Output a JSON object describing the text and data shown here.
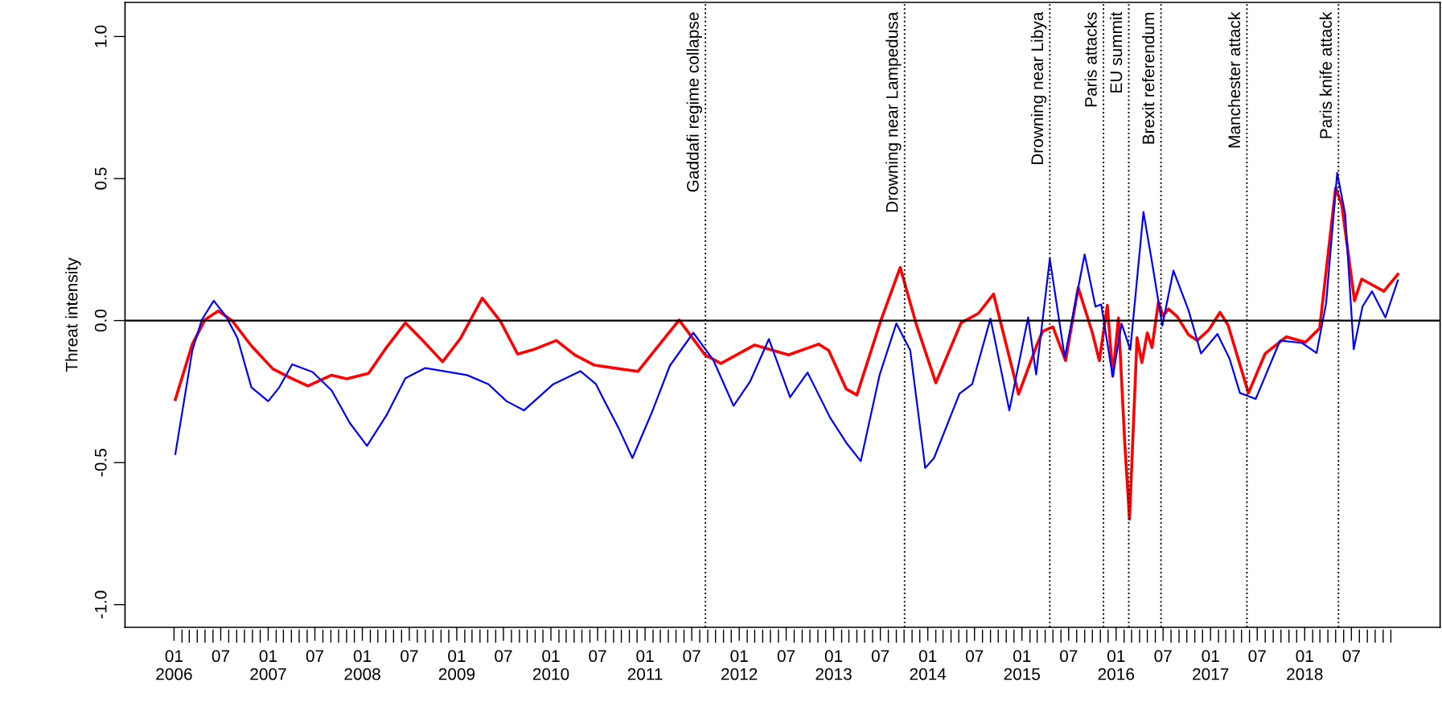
{
  "chart_data": {
    "type": "line",
    "ylabel": "Threat intensity",
    "xlim": [
      "2005-06-25",
      "2019-06-10"
    ],
    "ylim": [
      -1.08,
      1.12
    ],
    "yticks": [
      {
        "value": -1,
        "label": "-1.0"
      },
      {
        "value": -0.5,
        "label": "-0.5"
      },
      {
        "value": 0,
        "label": "0.0"
      },
      {
        "value": 0.5,
        "label": "0.5"
      },
      {
        "value": 1,
        "label": "1.0"
      }
    ],
    "xticks": [
      {
        "value": "2006-01",
        "label": "01\n2006"
      },
      {
        "value": "2006-02",
        "label": null
      },
      {
        "value": "2006-03",
        "label": null
      },
      {
        "value": "2006-04",
        "label": null
      },
      {
        "value": "2006-05",
        "label": null
      },
      {
        "value": "2006-06",
        "label": null
      },
      {
        "value": "2006-07",
        "label": "07"
      },
      {
        "value": "2006-08",
        "label": null
      },
      {
        "value": "2006-09",
        "label": null
      },
      {
        "value": "2006-10",
        "label": null
      },
      {
        "value": "2006-11",
        "label": null
      },
      {
        "value": "2006-12",
        "label": null
      },
      {
        "value": "2007-01",
        "label": "01\n2007"
      },
      {
        "value": "2007-02",
        "label": null
      },
      {
        "value": "2007-03",
        "label": null
      },
      {
        "value": "2007-04",
        "label": null
      },
      {
        "value": "2007-05",
        "label": null
      },
      {
        "value": "2007-06",
        "label": null
      },
      {
        "value": "2007-07",
        "label": "07"
      },
      {
        "value": "2007-08",
        "label": null
      },
      {
        "value": "2007-09",
        "label": null
      },
      {
        "value": "2007-10",
        "label": null
      },
      {
        "value": "2007-11",
        "label": null
      },
      {
        "value": "2007-12",
        "label": null
      },
      {
        "value": "2008-01",
        "label": "01\n2008"
      },
      {
        "value": "2008-02",
        "label": null
      },
      {
        "value": "2008-03",
        "label": null
      },
      {
        "value": "2008-04",
        "label": null
      },
      {
        "value": "2008-05",
        "label": null
      },
      {
        "value": "2008-06",
        "label": null
      },
      {
        "value": "2008-07",
        "label": "07"
      },
      {
        "value": "2008-08",
        "label": null
      },
      {
        "value": "2008-09",
        "label": null
      },
      {
        "value": "2008-10",
        "label": null
      },
      {
        "value": "2008-11",
        "label": null
      },
      {
        "value": "2008-12",
        "label": null
      },
      {
        "value": "2009-01",
        "label": "01\n2009"
      },
      {
        "value": "2009-02",
        "label": null
      },
      {
        "value": "2009-03",
        "label": null
      },
      {
        "value": "2009-04",
        "label": null
      },
      {
        "value": "2009-05",
        "label": null
      },
      {
        "value": "2009-06",
        "label": null
      },
      {
        "value": "2009-07",
        "label": "07"
      },
      {
        "value": "2009-08",
        "label": null
      },
      {
        "value": "2009-09",
        "label": null
      },
      {
        "value": "2009-10",
        "label": null
      },
      {
        "value": "2009-11",
        "label": null
      },
      {
        "value": "2009-12",
        "label": null
      },
      {
        "value": "2010-01",
        "label": "01\n2010"
      },
      {
        "value": "2010-02",
        "label": null
      },
      {
        "value": "2010-03",
        "label": null
      },
      {
        "value": "2010-04",
        "label": null
      },
      {
        "value": "2010-05",
        "label": null
      },
      {
        "value": "2010-06",
        "label": null
      },
      {
        "value": "2010-07",
        "label": "07"
      },
      {
        "value": "2010-08",
        "label": null
      },
      {
        "value": "2010-09",
        "label": null
      },
      {
        "value": "2010-10",
        "label": null
      },
      {
        "value": "2010-11",
        "label": null
      },
      {
        "value": "2010-12",
        "label": null
      },
      {
        "value": "2011-01",
        "label": "01\n2011"
      },
      {
        "value": "2011-02",
        "label": null
      },
      {
        "value": "2011-03",
        "label": null
      },
      {
        "value": "2011-04",
        "label": null
      },
      {
        "value": "2011-05",
        "label": null
      },
      {
        "value": "2011-06",
        "label": null
      },
      {
        "value": "2011-07",
        "label": "07"
      },
      {
        "value": "2011-08",
        "label": null
      },
      {
        "value": "2011-09",
        "label": null
      },
      {
        "value": "2011-10",
        "label": null
      },
      {
        "value": "2011-11",
        "label": null
      },
      {
        "value": "2011-12",
        "label": null
      },
      {
        "value": "2012-01",
        "label": "01\n2012"
      },
      {
        "value": "2012-02",
        "label": null
      },
      {
        "value": "2012-03",
        "label": null
      },
      {
        "value": "2012-04",
        "label": null
      },
      {
        "value": "2012-05",
        "label": null
      },
      {
        "value": "2012-06",
        "label": null
      },
      {
        "value": "2012-07",
        "label": "07"
      },
      {
        "value": "2012-08",
        "label": null
      },
      {
        "value": "2012-09",
        "label": null
      },
      {
        "value": "2012-10",
        "label": null
      },
      {
        "value": "2012-11",
        "label": null
      },
      {
        "value": "2012-12",
        "label": null
      },
      {
        "value": "2013-01",
        "label": "01\n2013"
      },
      {
        "value": "2013-02",
        "label": null
      },
      {
        "value": "2013-03",
        "label": null
      },
      {
        "value": "2013-04",
        "label": null
      },
      {
        "value": "2013-05",
        "label": null
      },
      {
        "value": "2013-06",
        "label": null
      },
      {
        "value": "2013-07",
        "label": "07"
      },
      {
        "value": "2013-08",
        "label": null
      },
      {
        "value": "2013-09",
        "label": null
      },
      {
        "value": "2013-10",
        "label": null
      },
      {
        "value": "2013-11",
        "label": null
      },
      {
        "value": "2013-12",
        "label": null
      },
      {
        "value": "2014-01",
        "label": "01\n2014"
      },
      {
        "value": "2014-02",
        "label": null
      },
      {
        "value": "2014-03",
        "label": null
      },
      {
        "value": "2014-04",
        "label": null
      },
      {
        "value": "2014-05",
        "label": null
      },
      {
        "value": "2014-06",
        "label": null
      },
      {
        "value": "2014-07",
        "label": "07"
      },
      {
        "value": "2014-08",
        "label": null
      },
      {
        "value": "2014-09",
        "label": null
      },
      {
        "value": "2014-10",
        "label": null
      },
      {
        "value": "2014-11",
        "label": null
      },
      {
        "value": "2014-12",
        "label": null
      },
      {
        "value": "2015-01",
        "label": "01\n2015"
      },
      {
        "value": "2015-02",
        "label": null
      },
      {
        "value": "2015-03",
        "label": null
      },
      {
        "value": "2015-04",
        "label": null
      },
      {
        "value": "2015-05",
        "label": null
      },
      {
        "value": "2015-06",
        "label": null
      },
      {
        "value": "2015-07",
        "label": "07"
      },
      {
        "value": "2015-08",
        "label": null
      },
      {
        "value": "2015-09",
        "label": null
      },
      {
        "value": "2015-10",
        "label": null
      },
      {
        "value": "2015-11",
        "label": null
      },
      {
        "value": "2015-12",
        "label": null
      },
      {
        "value": "2016-01",
        "label": "01\n2016"
      },
      {
        "value": "2016-02",
        "label": null
      },
      {
        "value": "2016-03",
        "label": null
      },
      {
        "value": "2016-04",
        "label": null
      },
      {
        "value": "2016-05",
        "label": null
      },
      {
        "value": "2016-06",
        "label": null
      },
      {
        "value": "2016-07",
        "label": "07"
      },
      {
        "value": "2016-08",
        "label": null
      },
      {
        "value": "2016-09",
        "label": null
      },
      {
        "value": "2016-10",
        "label": null
      },
      {
        "value": "2016-11",
        "label": null
      },
      {
        "value": "2016-12",
        "label": null
      },
      {
        "value": "2017-01",
        "label": "01\n2017"
      },
      {
        "value": "2017-02",
        "label": null
      },
      {
        "value": "2017-03",
        "label": null
      },
      {
        "value": "2017-04",
        "label": null
      },
      {
        "value": "2017-05",
        "label": null
      },
      {
        "value": "2017-06",
        "label": null
      },
      {
        "value": "2017-07",
        "label": "07"
      },
      {
        "value": "2017-08",
        "label": null
      },
      {
        "value": "2017-09",
        "label": null
      },
      {
        "value": "2017-10",
        "label": null
      },
      {
        "value": "2017-11",
        "label": null
      },
      {
        "value": "2017-12",
        "label": null
      },
      {
        "value": "2018-01",
        "label": "01\n2018"
      },
      {
        "value": "2018-02",
        "label": null
      },
      {
        "value": "2018-03",
        "label": null
      },
      {
        "value": "2018-04",
        "label": null
      },
      {
        "value": "2018-05",
        "label": null
      },
      {
        "value": "2018-06",
        "label": null
      },
      {
        "value": "2018-07",
        "label": "07"
      },
      {
        "value": "2018-08",
        "label": null
      },
      {
        "value": "2018-09",
        "label": null
      },
      {
        "value": "2018-10",
        "label": null
      },
      {
        "value": "2018-11",
        "label": null
      },
      {
        "value": "2018-12",
        "label": null
      }
    ],
    "grid": false,
    "legend": false,
    "marker": "none",
    "line_style": "solid",
    "series": [
      {
        "color": "#ff0000",
        "x": [
          "2006-01-06",
          "2006-03-13",
          "2006-05-01",
          "2006-06-22",
          "2006-08-16",
          "2006-10-28",
          "2007-01-19",
          "2007-04-01",
          "2007-06-04",
          "2007-09-04",
          "2007-11-01",
          "2008-01-25",
          "2008-04-04",
          "2008-06-16",
          "2008-08-25",
          "2008-11-07",
          "2009-01-16",
          "2009-04-10",
          "2009-06-19",
          "2009-08-25",
          "2009-11-01",
          "2010-01-22",
          "2010-04-04",
          "2010-06-19",
          "2010-12-04",
          "2011-05-13",
          "2011-08-22",
          "2011-10-22",
          "2012-03-01",
          "2012-07-10",
          "2012-11-04",
          "2012-12-13",
          "2013-02-19",
          "2013-04-01",
          "2013-07-04",
          "2013-09-16",
          "2013-11-19",
          "2014-02-01",
          "2014-05-10",
          "2014-07-16",
          "2014-09-13",
          "2014-12-19",
          "2015-03-01",
          "2015-03-22",
          "2015-05-01",
          "2015-06-19",
          "2015-08-07",
          "2015-10-01",
          "2015-10-28",
          "2015-11-28",
          "2015-12-19",
          "2016-01-10",
          "2016-02-04",
          "2016-02-22",
          "2016-03-22",
          "2016-04-10",
          "2016-05-01",
          "2016-05-19",
          "2016-06-13",
          "2016-07-01",
          "2016-07-22",
          "2016-08-25",
          "2016-10-07",
          "2016-11-10",
          "2016-12-25",
          "2017-02-07",
          "2017-03-10",
          "2017-05-28",
          "2017-08-01",
          "2017-10-22",
          "2018-01-04",
          "2018-02-28",
          "2018-05-01",
          "2018-05-25",
          "2018-07-13",
          "2018-08-10",
          "2018-11-04",
          "2018-12-28"
        ],
        "values": [
          -0.278,
          -0.083,
          0.003,
          0.034,
          -0.002,
          -0.089,
          -0.17,
          -0.203,
          -0.23,
          -0.192,
          -0.205,
          -0.186,
          -0.094,
          -0.008,
          -0.073,
          -0.145,
          -0.062,
          0.079,
          -0.002,
          -0.118,
          -0.1,
          -0.07,
          -0.121,
          -0.157,
          -0.179,
          0.002,
          -0.121,
          -0.151,
          -0.086,
          -0.121,
          -0.083,
          -0.105,
          -0.241,
          -0.262,
          0.003,
          0.187,
          -0.018,
          -0.219,
          -0.008,
          0.025,
          0.093,
          -0.259,
          -0.083,
          -0.038,
          -0.022,
          -0.141,
          0.116,
          -0.043,
          -0.141,
          0.054,
          -0.195,
          0.009,
          -0.439,
          -0.699,
          -0.06,
          -0.148,
          -0.043,
          -0.095,
          0.065,
          0.016,
          0.041,
          0.014,
          -0.049,
          -0.07,
          -0.033,
          0.029,
          -0.016,
          -0.255,
          -0.116,
          -0.057,
          -0.076,
          -0.027,
          0.468,
          0.406,
          0.07,
          0.146,
          0.103,
          0.163
        ]
      },
      {
        "color": "#0000ff",
        "x": [
          "2006-01-06",
          "2006-03-13",
          "2006-04-19",
          "2006-06-04",
          "2006-07-22",
          "2006-09-04",
          "2006-10-28",
          "2007-01-01",
          "2007-02-13",
          "2007-04-04",
          "2007-06-22",
          "2007-09-04",
          "2007-11-13",
          "2008-01-19",
          "2008-04-04",
          "2008-06-16",
          "2008-09-01",
          "2008-11-19",
          "2009-02-10",
          "2009-05-04",
          "2009-07-13",
          "2009-09-19",
          "2010-01-10",
          "2010-04-25",
          "2010-06-25",
          "2010-07-19",
          "2010-09-19",
          "2010-11-13",
          "2011-01-28",
          "2011-04-07",
          "2011-07-07",
          "2011-09-22",
          "2011-12-10",
          "2012-02-13",
          "2012-04-25",
          "2012-07-16",
          "2012-09-22",
          "2012-12-19",
          "2013-02-19",
          "2013-04-16",
          "2013-06-28",
          "2013-09-01",
          "2013-10-25",
          "2013-12-22",
          "2014-01-25",
          "2014-05-04",
          "2014-06-22",
          "2014-09-01",
          "2014-11-13",
          "2015-01-25",
          "2015-02-25",
          "2015-04-19",
          "2015-06-16",
          "2015-09-01",
          "2015-10-13",
          "2015-11-04",
          "2015-12-19",
          "2016-01-22",
          "2016-02-25",
          "2016-04-16",
          "2016-05-22",
          "2016-06-28",
          "2016-08-10",
          "2016-10-07",
          "2016-11-25",
          "2017-01-28",
          "2017-03-16",
          "2017-04-25",
          "2017-06-25",
          "2017-09-28",
          "2017-12-22",
          "2018-02-16",
          "2018-03-25",
          "2018-05-07",
          "2018-06-07",
          "2018-07-10",
          "2018-08-13",
          "2018-09-19",
          "2018-11-10",
          "2018-12-28"
        ],
        "values": [
          -0.47,
          -0.105,
          0.003,
          0.07,
          0.014,
          -0.062,
          -0.235,
          -0.284,
          -0.235,
          -0.154,
          -0.181,
          -0.246,
          -0.36,
          -0.441,
          -0.333,
          -0.203,
          -0.167,
          -0.179,
          -0.192,
          -0.224,
          -0.284,
          -0.316,
          -0.224,
          -0.178,
          -0.224,
          -0.268,
          -0.376,
          -0.484,
          -0.322,
          -0.159,
          -0.043,
          -0.138,
          -0.3,
          -0.213,
          -0.065,
          -0.27,
          -0.183,
          -0.343,
          -0.43,
          -0.495,
          -0.192,
          -0.01,
          -0.105,
          -0.519,
          -0.484,
          -0.257,
          -0.224,
          0.007,
          -0.316,
          0.011,
          -0.19,
          0.217,
          -0.13,
          0.233,
          0.049,
          0.057,
          -0.198,
          -0.011,
          -0.103,
          0.382,
          0.19,
          -0.018,
          0.176,
          0.038,
          -0.116,
          -0.047,
          -0.135,
          -0.255,
          -0.276,
          -0.07,
          -0.079,
          -0.114,
          0.06,
          0.52,
          0.374,
          -0.101,
          0.049,
          0.103,
          0.011,
          0.141
        ]
      }
    ],
    "ref_lines": [
      {
        "axis": "y",
        "value": 0,
        "color": "#000000",
        "line_style": "solid"
      },
      {
        "axis": "x",
        "value": "2011-08-23",
        "label": "Gaddafi regime collapse",
        "color": "#000000",
        "line_style": "dotted"
      },
      {
        "axis": "x",
        "value": "2013-10-03",
        "label": "Drowning near Lampedusa",
        "color": "#000000",
        "line_style": "dotted"
      },
      {
        "axis": "x",
        "value": "2015-04-19",
        "label": "Drowning near Libya",
        "color": "#000000",
        "line_style": "dotted"
      },
      {
        "axis": "x",
        "value": "2015-11-13",
        "label": "Paris attacks",
        "color": "#000000",
        "line_style": "dotted"
      },
      {
        "axis": "x",
        "value": "2016-02-19",
        "label": "EU summit",
        "color": "#000000",
        "line_style": "dotted"
      },
      {
        "axis": "x",
        "value": "2016-06-23",
        "label": "Brexit referendum",
        "color": "#000000",
        "line_style": "dotted"
      },
      {
        "axis": "x",
        "value": "2017-05-22",
        "label": "Manchester attack",
        "color": "#000000",
        "line_style": "dotted"
      },
      {
        "axis": "x",
        "value": "2018-05-12",
        "label": "Paris knife attack",
        "color": "#000000",
        "line_style": "dotted"
      }
    ]
  }
}
